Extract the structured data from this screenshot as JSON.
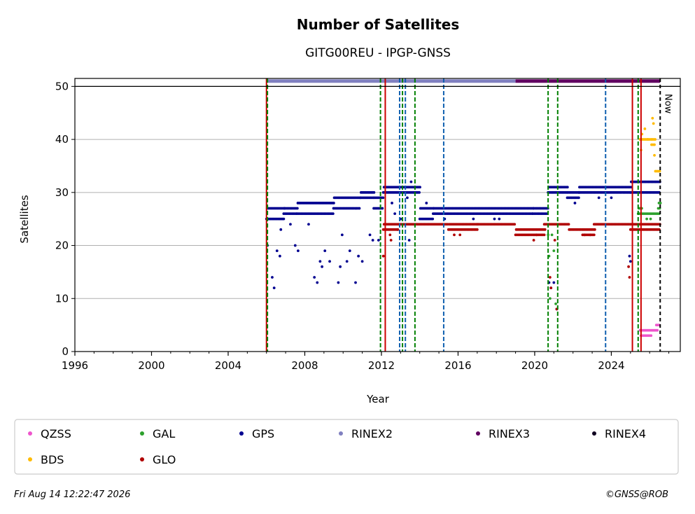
{
  "chart_data": {
    "type": "scatter",
    "title": "Number of Satellites",
    "subtitle": "GITG00REU - IPGP-GNSS",
    "xlabel": "Year",
    "ylabel": "Satellites",
    "xlim": [
      1996,
      2027.6
    ],
    "ylim": [
      0,
      51.5
    ],
    "xticks": [
      1996,
      2000,
      2004,
      2008,
      2012,
      2016,
      2020,
      2024
    ],
    "yticks": [
      0,
      10,
      20,
      30,
      40,
      50
    ],
    "grid": "horizontal",
    "legend_position": "bottom",
    "now_label": "Now",
    "now_year": 2026.55,
    "limit_line": 50,
    "colors": {
      "QZSS": "#ee55cc",
      "GAL": "#2ca02c",
      "GPS": "#000090",
      "RINEX2": "#8080c0",
      "RINEX3": "#600060",
      "RINEX4": "#100020",
      "BDS": "#ffbb00",
      "GLO": "#b00000",
      "event_red": "#cc0000",
      "event_green": "#008000",
      "event_blue": "#1060b0"
    },
    "rinex_bars": [
      {
        "name": "RINEX2",
        "start": 2006.0,
        "end": 2019.0,
        "y": 51
      },
      {
        "name": "RINEX3",
        "start": 2019.0,
        "end": 2026.55,
        "y": 51
      }
    ],
    "events": [
      {
        "x": 2006.0,
        "type": "red"
      },
      {
        "x": 2006.05,
        "type": "green"
      },
      {
        "x": 2011.95,
        "type": "green"
      },
      {
        "x": 2012.2,
        "type": "red"
      },
      {
        "x": 2012.95,
        "type": "blue"
      },
      {
        "x": 2013.1,
        "type": "green"
      },
      {
        "x": 2013.25,
        "type": "blue"
      },
      {
        "x": 2013.75,
        "type": "green"
      },
      {
        "x": 2015.25,
        "type": "blue"
      },
      {
        "x": 2020.7,
        "type": "green"
      },
      {
        "x": 2021.2,
        "type": "green"
      },
      {
        "x": 2023.7,
        "type": "blue"
      },
      {
        "x": 2025.1,
        "type": "red"
      },
      {
        "x": 2025.4,
        "type": "green"
      },
      {
        "x": 2025.55,
        "type": "red"
      }
    ],
    "series": [
      {
        "name": "GPS",
        "segments": [
          [
            2006.0,
            2006.9,
            25,
            27
          ],
          [
            2006.9,
            2007.6,
            26,
            27
          ],
          [
            2007.6,
            2009.5,
            26,
            28
          ],
          [
            2009.5,
            2010.9,
            27,
            29
          ],
          [
            2010.9,
            2011.6,
            29,
            30
          ],
          [
            2011.6,
            2012.1,
            27,
            29
          ],
          [
            2012.1,
            2014.0,
            30,
            31
          ],
          [
            2014.0,
            2014.7,
            25,
            27
          ],
          [
            2014.7,
            2019.9,
            26,
            27
          ],
          [
            2019.9,
            2020.7,
            26,
            27
          ],
          [
            2020.7,
            2021.7,
            30,
            31
          ],
          [
            2021.7,
            2022.3,
            29,
            30
          ],
          [
            2022.3,
            2025.0,
            30,
            31
          ],
          [
            2025.0,
            2026.55,
            30,
            32
          ]
        ],
        "outliers": [
          [
            2006.05,
            20
          ],
          [
            2006.3,
            14
          ],
          [
            2006.4,
            12
          ],
          [
            2006.55,
            19
          ],
          [
            2006.7,
            18
          ],
          [
            2006.75,
            23
          ],
          [
            2007.25,
            24
          ],
          [
            2007.5,
            20
          ],
          [
            2007.65,
            19
          ],
          [
            2008.2,
            24
          ],
          [
            2008.5,
            14
          ],
          [
            2008.65,
            13
          ],
          [
            2008.8,
            17
          ],
          [
            2008.9,
            16
          ],
          [
            2009.05,
            19
          ],
          [
            2009.3,
            17
          ],
          [
            2009.75,
            13
          ],
          [
            2009.85,
            16
          ],
          [
            2009.95,
            22
          ],
          [
            2010.2,
            17
          ],
          [
            2010.35,
            19
          ],
          [
            2010.65,
            13
          ],
          [
            2010.8,
            18
          ],
          [
            2011.0,
            17
          ],
          [
            2011.4,
            22
          ],
          [
            2011.55,
            21
          ],
          [
            2011.85,
            21
          ],
          [
            2012.55,
            28
          ],
          [
            2012.7,
            26
          ],
          [
            2012.85,
            23
          ],
          [
            2013.0,
            25
          ],
          [
            2013.35,
            29
          ],
          [
            2013.45,
            21
          ],
          [
            2013.55,
            32
          ],
          [
            2014.35,
            28
          ],
          [
            2015.3,
            25
          ],
          [
            2016.8,
            25
          ],
          [
            2017.9,
            25
          ],
          [
            2018.15,
            25
          ],
          [
            2020.75,
            13
          ],
          [
            2020.85,
            12
          ],
          [
            2021.0,
            13
          ],
          [
            2021.15,
            8
          ],
          [
            2022.1,
            28
          ],
          [
            2023.35,
            29
          ],
          [
            2024.0,
            29
          ],
          [
            2024.95,
            18
          ],
          [
            2025.0,
            17
          ]
        ]
      },
      {
        "name": "GLO",
        "segments": [
          [
            2012.1,
            2012.9,
            23,
            24
          ],
          [
            2012.9,
            2015.5,
            24,
            24
          ],
          [
            2015.5,
            2017.0,
            23,
            24
          ],
          [
            2017.0,
            2019.0,
            24,
            24
          ],
          [
            2019.0,
            2020.5,
            22,
            23
          ],
          [
            2020.5,
            2021.8,
            24,
            24
          ],
          [
            2021.8,
            2022.5,
            23,
            23
          ],
          [
            2022.5,
            2023.1,
            22,
            23
          ],
          [
            2023.1,
            2025.0,
            24,
            24
          ],
          [
            2025.0,
            2026.55,
            23,
            24
          ]
        ],
        "outliers": [
          [
            2012.1,
            18
          ],
          [
            2012.45,
            22
          ],
          [
            2012.5,
            21
          ],
          [
            2015.8,
            22
          ],
          [
            2016.1,
            22
          ],
          [
            2019.95,
            21
          ],
          [
            2020.1,
            22
          ],
          [
            2020.8,
            14
          ],
          [
            2020.85,
            12
          ],
          [
            2021.05,
            21
          ],
          [
            2021.15,
            8
          ],
          [
            2022.6,
            22
          ],
          [
            2022.9,
            22
          ],
          [
            2024.9,
            16
          ],
          [
            2024.95,
            14
          ]
        ]
      },
      {
        "name": "GAL",
        "segments": [
          [
            2025.4,
            2025.6,
            26,
            27
          ],
          [
            2025.6,
            2026.55,
            26,
            26
          ],
          [
            2026.45,
            2026.55,
            27,
            28
          ]
        ],
        "outliers": [
          [
            2020.7,
            22
          ],
          [
            2020.75,
            18
          ],
          [
            2020.8,
            10
          ],
          [
            2020.9,
            22
          ],
          [
            2021.0,
            19
          ],
          [
            2021.1,
            9
          ],
          [
            2025.85,
            25
          ],
          [
            2026.05,
            25
          ]
        ]
      },
      {
        "name": "BDS",
        "segments": [
          [
            2025.5,
            2026.1,
            40,
            40
          ],
          [
            2026.1,
            2026.3,
            39,
            40
          ],
          [
            2026.3,
            2026.55,
            34,
            34
          ]
        ],
        "outliers": [
          [
            2025.55,
            38
          ],
          [
            2025.6,
            41
          ],
          [
            2025.75,
            42
          ],
          [
            2025.9,
            40
          ],
          [
            2026.15,
            44
          ],
          [
            2026.2,
            43
          ],
          [
            2026.25,
            37
          ]
        ]
      },
      {
        "name": "QZSS",
        "segments": [
          [
            2025.5,
            2026.4,
            4,
            4
          ],
          [
            2025.55,
            2026.1,
            3,
            3
          ],
          [
            2026.35,
            2026.55,
            5,
            5
          ]
        ],
        "outliers": []
      },
      {
        "name": "RINEX2",
        "segments": [],
        "outliers": []
      },
      {
        "name": "RINEX3",
        "segments": [],
        "outliers": []
      },
      {
        "name": "RINEX4",
        "segments": [],
        "outliers": []
      }
    ],
    "legend": [
      {
        "label": "QZSS",
        "color": "#ee55cc"
      },
      {
        "label": "GAL",
        "color": "#2ca02c"
      },
      {
        "label": "GPS",
        "color": "#000090"
      },
      {
        "label": "RINEX2",
        "color": "#8080c0"
      },
      {
        "label": "RINEX3",
        "color": "#600060"
      },
      {
        "label": "RINEX4",
        "color": "#100020"
      },
      {
        "label": "BDS",
        "color": "#ffbb00"
      },
      {
        "label": "GLO",
        "color": "#b00000"
      }
    ]
  },
  "footer": {
    "timestamp": "Fri Aug 14 12:22:47 2026",
    "credit": "©GNSS@ROB"
  }
}
